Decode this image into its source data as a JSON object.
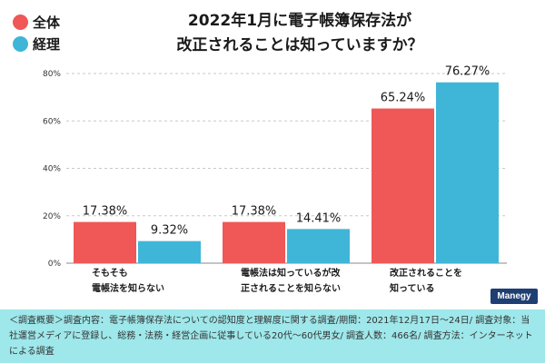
{
  "legend": [
    {
      "label": "全体",
      "color": "#f05757"
    },
    {
      "label": "経理",
      "color": "#3fb6d8"
    }
  ],
  "title_lines": [
    "2022年1月に電子帳簿保存法が",
    "改正されることは知っていますか？"
  ],
  "chart_data": {
    "type": "bar",
    "title": "2022年1月に電子帳簿保存法が改正されることは知っていますか？",
    "categories": [
      [
        "そもそも",
        "電帳法を知らない"
      ],
      [
        "電帳法は知っているが改",
        "正されることを知らない"
      ],
      [
        "改正されることを",
        "知っている"
      ]
    ],
    "series": [
      {
        "name": "全体",
        "color": "#f05757",
        "values": [
          17.38,
          17.38,
          65.24
        ],
        "labels": [
          "17.38%",
          "17.38%",
          "65.24%"
        ]
      },
      {
        "name": "経理",
        "color": "#3fb6d8",
        "values": [
          9.32,
          14.41,
          76.27
        ],
        "labels": [
          "9.32%",
          "14.41%",
          "76.27%"
        ]
      }
    ],
    "ylim": [
      0,
      80
    ],
    "yticks": [
      0,
      20,
      40,
      60,
      80
    ],
    "ytick_labels": [
      "0%",
      "20%",
      "40%",
      "60%",
      "80%"
    ],
    "grid": true,
    "xlabel": "",
    "ylabel": ""
  },
  "brand": "Manegy",
  "footer_text": "＜調査概要＞調査内容：電子帳簿保存法についての認知度と理解度に関する調査/期間：2021年12月17日〜24日/ 調査対象：当社運営メディアに登録し、総務・法務・経営企画に従事している20代〜60代男女/ 調査人数：466名/ 調査方法：インターネットによる調査"
}
